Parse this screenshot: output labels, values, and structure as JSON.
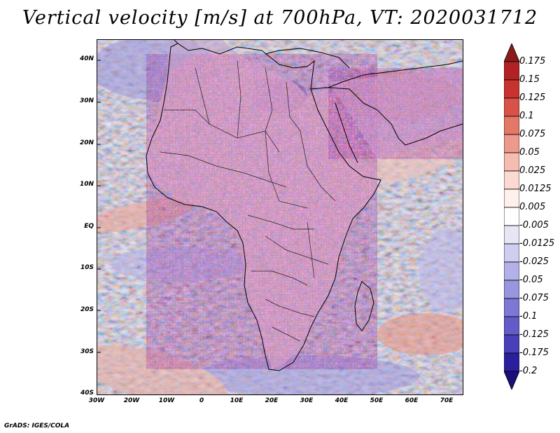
{
  "title": "Vertical velocity [m/s] at 700hPa, VT: 2020031712",
  "credit": "GrADS: IGES/COLA",
  "map": {
    "lat_labels": [
      "40N",
      "30N",
      "20N",
      "10N",
      "EQ",
      "10S",
      "20S",
      "30S",
      "40S"
    ],
    "lon_labels": [
      "30W",
      "20W",
      "10W",
      "0",
      "10E",
      "20E",
      "30E",
      "40E",
      "50E",
      "60E",
      "70E"
    ],
    "lon_range": [
      -30,
      75
    ],
    "lat_range": [
      -40,
      45
    ]
  },
  "colorbar": {
    "labels": [
      "0.175",
      "0.15",
      "0.125",
      "0.1",
      "0.075",
      "0.05",
      "0.025",
      "0.0125",
      "0.005",
      "-0.005",
      "-0.0125",
      "-0.025",
      "-0.05",
      "-0.075",
      "-0.1",
      "-0.125",
      "-0.175",
      "-0.2"
    ],
    "colors": [
      "#8b1a1a",
      "#b22222",
      "#c8332f",
      "#d8524a",
      "#e47766",
      "#ee9a8a",
      "#f5bcb0",
      "#fadad2",
      "#fff0ec",
      "#ffffff",
      "#e6e6f7",
      "#cfcdf0",
      "#b3b1e8",
      "#9995df",
      "#7d78d4",
      "#625bc8",
      "#4a3fb8",
      "#2c1f9e",
      "#1a0f7a"
    ]
  }
}
